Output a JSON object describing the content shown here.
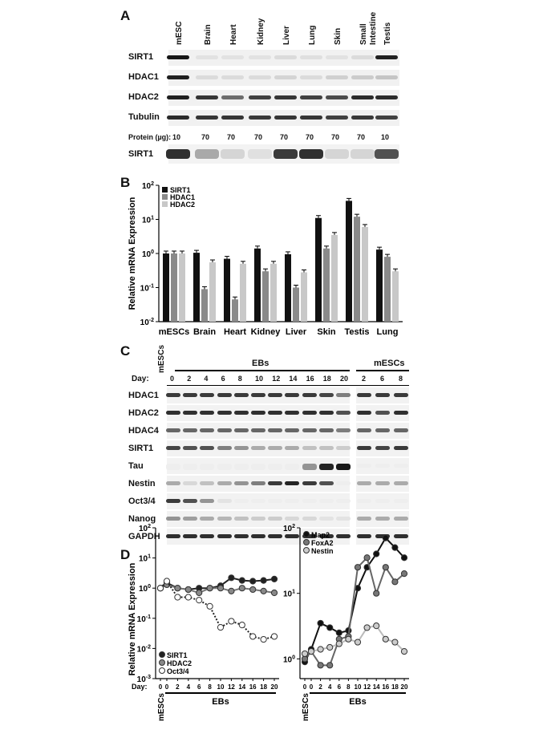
{
  "panelA": {
    "letter": "A",
    "lanes": [
      "mESC",
      "Brain",
      "Heart",
      "Kidney",
      "Liver",
      "Lung",
      "Skin",
      "Small",
      "Testis"
    ],
    "lane_extra": "Intestine",
    "rows": [
      "SIRT1",
      "HDAC1",
      "HDAC2",
      "Tubulin"
    ],
    "protein_label": "Protein (µg):",
    "protein_values": [
      "10",
      "70",
      "70",
      "70",
      "70",
      "70",
      "70",
      "70",
      "10"
    ],
    "bottom_row": "SIRT1"
  },
  "panelB": {
    "letter": "B",
    "chart_data": {
      "type": "bar",
      "ylabel": "Relative mRNA Expression",
      "yscale": "log",
      "ylim": [
        0.01,
        100
      ],
      "yticks": [
        "10-2",
        "10-1",
        "100",
        "101",
        "102"
      ],
      "categories": [
        "mESCs",
        "Brain",
        "Heart",
        "Kidney",
        "Liver",
        "Skin",
        "Testis",
        "Lung"
      ],
      "series": [
        {
          "name": "SIRT1",
          "color": "#111111",
          "values": [
            1.0,
            1.05,
            0.7,
            1.4,
            0.95,
            11,
            35,
            1.3
          ]
        },
        {
          "name": "HDAC1",
          "color": "#8a8a8a",
          "values": [
            1.0,
            0.09,
            0.045,
            0.3,
            0.1,
            1.4,
            12,
            0.8
          ]
        },
        {
          "name": "HDAC2",
          "color": "#c8c8c8",
          "values": [
            1.0,
            0.55,
            0.5,
            0.5,
            0.28,
            3.5,
            6,
            0.3
          ]
        }
      ]
    }
  },
  "panelC": {
    "letter": "C",
    "mescs_label": "mESCs",
    "ebs_label": "EBs",
    "mescs_right": "mESCs",
    "day_label": "Day:",
    "days_left": [
      "0",
      "2",
      "4",
      "6",
      "8",
      "10",
      "12",
      "14",
      "16",
      "18",
      "20"
    ],
    "days_right": [
      "2",
      "6",
      "8"
    ],
    "rows": [
      "HDAC1",
      "HDAC2",
      "HDAC4",
      "SIRT1",
      "Tau",
      "Nestin",
      "Oct3/4",
      "Nanog",
      "GAPDH"
    ]
  },
  "panelD": {
    "letter": "D",
    "ylabel": "Relative mRNA Expression",
    "day_label": "Day:",
    "mescs_label": "mESCs",
    "ebs_label": "EBs",
    "chart_data": [
      {
        "type": "line",
        "yscale": "log",
        "ylim": [
          0.001,
          100
        ],
        "yticks": [
          "10-3",
          "10-2",
          "10-1",
          "100",
          "101",
          "102"
        ],
        "x": [
          "0",
          "0",
          "2",
          "4",
          "6",
          "8",
          "10",
          "12",
          "14",
          "16",
          "18",
          "20"
        ],
        "x_days": [
          0,
          2,
          4,
          6,
          8,
          10,
          12,
          14,
          16,
          18,
          20
        ],
        "series": [
          {
            "name": "SIRT1",
            "values": [
              1.0,
              1.5,
              1.0,
              0.9,
              1.0,
              1.0,
              1.2,
              2.2,
              1.8,
              1.7,
              1.8,
              2.0
            ]
          },
          {
            "name": "HDAC2",
            "values": [
              1.0,
              1.3,
              1.0,
              0.9,
              0.7,
              1.0,
              1.0,
              0.8,
              1.0,
              0.9,
              0.8,
              0.7
            ]
          },
          {
            "name": "Oct3/4",
            "values": [
              1.0,
              1.7,
              0.5,
              0.5,
              0.4,
              0.25,
              0.05,
              0.08,
              0.06,
              0.025,
              0.02,
              0.025
            ]
          }
        ]
      },
      {
        "type": "line",
        "yscale": "log",
        "ylim": [
          0.5,
          100
        ],
        "yticks": [
          "100",
          "101",
          "102"
        ],
        "x": [
          "0",
          "0",
          "2",
          "4",
          "6",
          "8",
          "10",
          "12",
          "14",
          "16",
          "18",
          "20"
        ],
        "series": [
          {
            "name": "Map2",
            "values": [
              0.9,
              1.4,
              3.5,
              3.0,
              2.5,
              2.7,
              12,
              25,
              40,
              70,
              50,
              35
            ]
          },
          {
            "name": "FoxA2",
            "values": [
              1.0,
              1.3,
              0.8,
              0.8,
              2.0,
              2.2,
              25,
              35,
              10,
              25,
              15,
              20
            ]
          },
          {
            "name": "Nestin",
            "values": [
              1.2,
              1.3,
              1.4,
              1.5,
              1.7,
              2.0,
              1.8,
              3.0,
              3.2,
              2.0,
              1.8,
              1.3
            ]
          }
        ]
      }
    ]
  }
}
